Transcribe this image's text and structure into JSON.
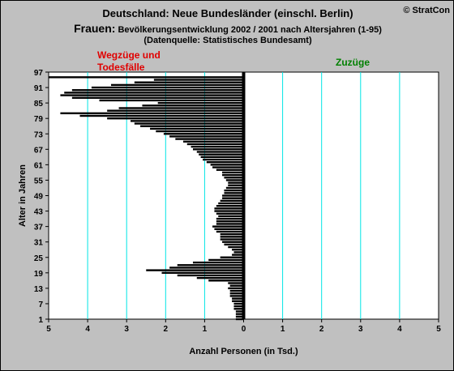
{
  "header": {
    "title": "Deutschland: Neue Bundesländer (einschl. Berlin)",
    "copyright": "© StratCon",
    "subtitle_prefix": "Frauen:",
    "subtitle": " Bevölkerungsentwicklung 2002 / 2001  nach Altersjahren (1-95)",
    "source": "(Datenquelle: Statistisches Bundesamt)"
  },
  "colors": {
    "background": "#c0c0c0",
    "plot_area": "#ffffff",
    "bar": "#000000",
    "gridline": "#00e5e5",
    "left_label": "#e00000",
    "right_label": "#008000"
  },
  "chart_data": {
    "type": "bar",
    "orientation": "horizontal",
    "title": "Deutschland: Neue Bundesländer (einschl. Berlin)",
    "xlabel": "Anzahl Personen (in Tsd.)",
    "ylabel": "Alter in Jahren",
    "left_label": "Wegzüge und Todesfälle",
    "left_label_lines": [
      "Wegzüge und",
      "Todesfälle"
    ],
    "right_label": "Zuzüge",
    "xlim": [
      -5,
      5
    ],
    "xticks": [
      -5,
      -4,
      -3,
      -2,
      -1,
      0,
      1,
      2,
      3,
      4,
      5
    ],
    "xtick_labels": [
      "5",
      "4",
      "3",
      "2",
      "1",
      "0",
      "1",
      "2",
      "3",
      "4",
      "5"
    ],
    "ylim": [
      1,
      97
    ],
    "yticks": [
      1,
      7,
      13,
      19,
      25,
      31,
      37,
      43,
      49,
      55,
      61,
      67,
      73,
      79,
      85,
      91,
      97
    ],
    "grid": "vertical",
    "ages": [
      1,
      2,
      3,
      4,
      5,
      6,
      7,
      8,
      9,
      10,
      11,
      12,
      13,
      14,
      15,
      16,
      17,
      18,
      19,
      20,
      21,
      22,
      23,
      24,
      25,
      26,
      27,
      28,
      29,
      30,
      31,
      32,
      33,
      34,
      35,
      36,
      37,
      38,
      39,
      40,
      41,
      42,
      43,
      44,
      45,
      46,
      47,
      48,
      49,
      50,
      51,
      52,
      53,
      54,
      55,
      56,
      57,
      58,
      59,
      60,
      61,
      62,
      63,
      64,
      65,
      66,
      67,
      68,
      69,
      70,
      71,
      72,
      73,
      74,
      75,
      76,
      77,
      78,
      79,
      80,
      81,
      82,
      83,
      84,
      85,
      86,
      87,
      88,
      89,
      90,
      91,
      92,
      93,
      94,
      95
    ],
    "series": [
      {
        "side": "left",
        "values": [
          -0.2,
          -0.2,
          -0.2,
          -0.2,
          -0.25,
          -0.25,
          -0.25,
          -0.3,
          -0.3,
          -0.35,
          -0.35,
          -0.35,
          -0.4,
          -0.35,
          -0.4,
          -0.9,
          -1.2,
          -1.7,
          -2.1,
          -2.5,
          -1.9,
          -1.7,
          -1.3,
          -0.9,
          -0.6,
          -0.3,
          -0.25,
          -0.3,
          -0.4,
          -0.5,
          -0.55,
          -0.6,
          -0.6,
          -0.6,
          -0.7,
          -0.75,
          -0.8,
          -0.7,
          -0.7,
          -0.7,
          -0.65,
          -0.7,
          -0.75,
          -0.75,
          -0.7,
          -0.65,
          -0.6,
          -0.55,
          -0.55,
          -0.5,
          -0.5,
          -0.45,
          -0.4,
          -0.4,
          -0.45,
          -0.5,
          -0.55,
          -0.55,
          -0.7,
          -0.8,
          -0.85,
          -0.95,
          -1.05,
          -1.1,
          -1.15,
          -1.2,
          -1.3,
          -1.35,
          -1.45,
          -1.55,
          -1.75,
          -1.9,
          -2.05,
          -2.25,
          -2.4,
          -2.65,
          -2.8,
          -2.9,
          -3.5,
          -4.2,
          -4.7,
          -3.5,
          -3.2,
          -2.6,
          -2.2,
          -3.7,
          -4.4,
          -4.7,
          -4.6,
          -4.4,
          -3.9,
          -3.4,
          -2.8,
          -2.3,
          -5.0
        ]
      },
      {
        "side": "right",
        "values": [
          0,
          0,
          0,
          0,
          0,
          0,
          0,
          0,
          0,
          0,
          0,
          0,
          0,
          0,
          0,
          0,
          0,
          0,
          0,
          0,
          0,
          0,
          0,
          0,
          0,
          0,
          0,
          0,
          0,
          0,
          0,
          0,
          0,
          0,
          0,
          0,
          0,
          0,
          0,
          0,
          0,
          0,
          0,
          0,
          0,
          0,
          0,
          0,
          0,
          0,
          0,
          0,
          0,
          0,
          0,
          0,
          0,
          0,
          0,
          0,
          0,
          0,
          0,
          0,
          0,
          0,
          0,
          0,
          0,
          0,
          0,
          0,
          0,
          0,
          0,
          0,
          0,
          0,
          0,
          0,
          0,
          0,
          0,
          0,
          0,
          0,
          0,
          0,
          0,
          0,
          0,
          0,
          0,
          0,
          0
        ]
      }
    ]
  }
}
